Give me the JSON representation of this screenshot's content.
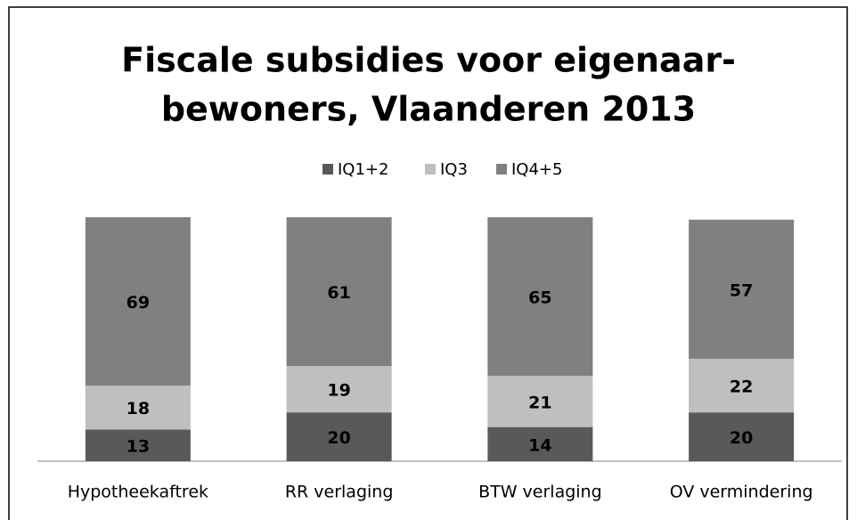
{
  "chart_data": {
    "type": "stacked_bar",
    "title": [
      "Fiscale subsidies voor eigenaar-",
      "bewoners, Vlaanderen 2013"
    ],
    "categories": [
      "Hypotheekaftrek",
      "RR verlaging",
      "BTW verlaging",
      "OV vermindering"
    ],
    "series": [
      {
        "name": "IQ1+2",
        "color": "#595959",
        "values": [
          13,
          20,
          14,
          20
        ]
      },
      {
        "name": "IQ3",
        "color": "#bfbfbf",
        "values": [
          18,
          19,
          21,
          22
        ]
      },
      {
        "name": "IQ4+5",
        "color": "#808080",
        "values": [
          69,
          61,
          65,
          57
        ]
      }
    ],
    "legend": "top"
  }
}
